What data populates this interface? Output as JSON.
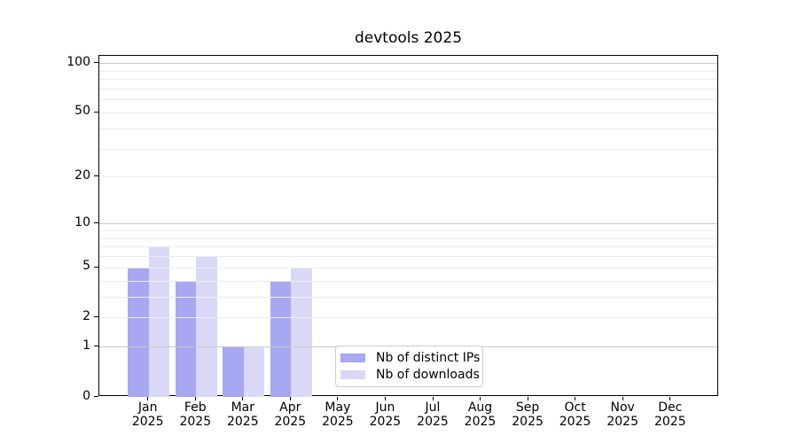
{
  "title": "devtools 2025",
  "chart_data": {
    "type": "bar",
    "title": "devtools 2025",
    "y_scale": "log-like: position proportional to log10(value+1), axis starts at 0",
    "ylim": [
      0,
      110
    ],
    "y_ticks": [
      0,
      1,
      2,
      5,
      10,
      20,
      50,
      100
    ],
    "y_grid_minor": [
      2,
      3,
      4,
      5,
      6,
      7,
      8,
      9,
      20,
      30,
      40,
      50,
      60,
      70,
      80,
      90
    ],
    "y_grid_major": [
      1,
      10,
      100
    ],
    "x_months": [
      "Jan",
      "Feb",
      "Mar",
      "Apr",
      "May",
      "Jun",
      "Jul",
      "Aug",
      "Sep",
      "Oct",
      "Nov",
      "Dec"
    ],
    "x_year": "2025",
    "series": [
      {
        "key": "distinct-ips",
        "name": "Nb of distinct IPs",
        "color": "#a7a7f2",
        "values": [
          5,
          4,
          1,
          4,
          0,
          0,
          0,
          0,
          0,
          0,
          0,
          0
        ]
      },
      {
        "key": "downloads",
        "name": "Nb of downloads",
        "color": "#d9d9f7",
        "values": [
          7,
          6,
          1,
          5,
          0,
          0,
          0,
          0,
          0,
          0,
          0,
          0
        ]
      }
    ],
    "legend_position": "bottom center, inside plot",
    "grid_on": true,
    "colors": {
      "grid_minor": "#ececec",
      "grid_major": "#c9c9c9",
      "axis": "#000000",
      "text": "#000000",
      "legend_border": "#cccccc",
      "background": "#ffffff"
    }
  }
}
